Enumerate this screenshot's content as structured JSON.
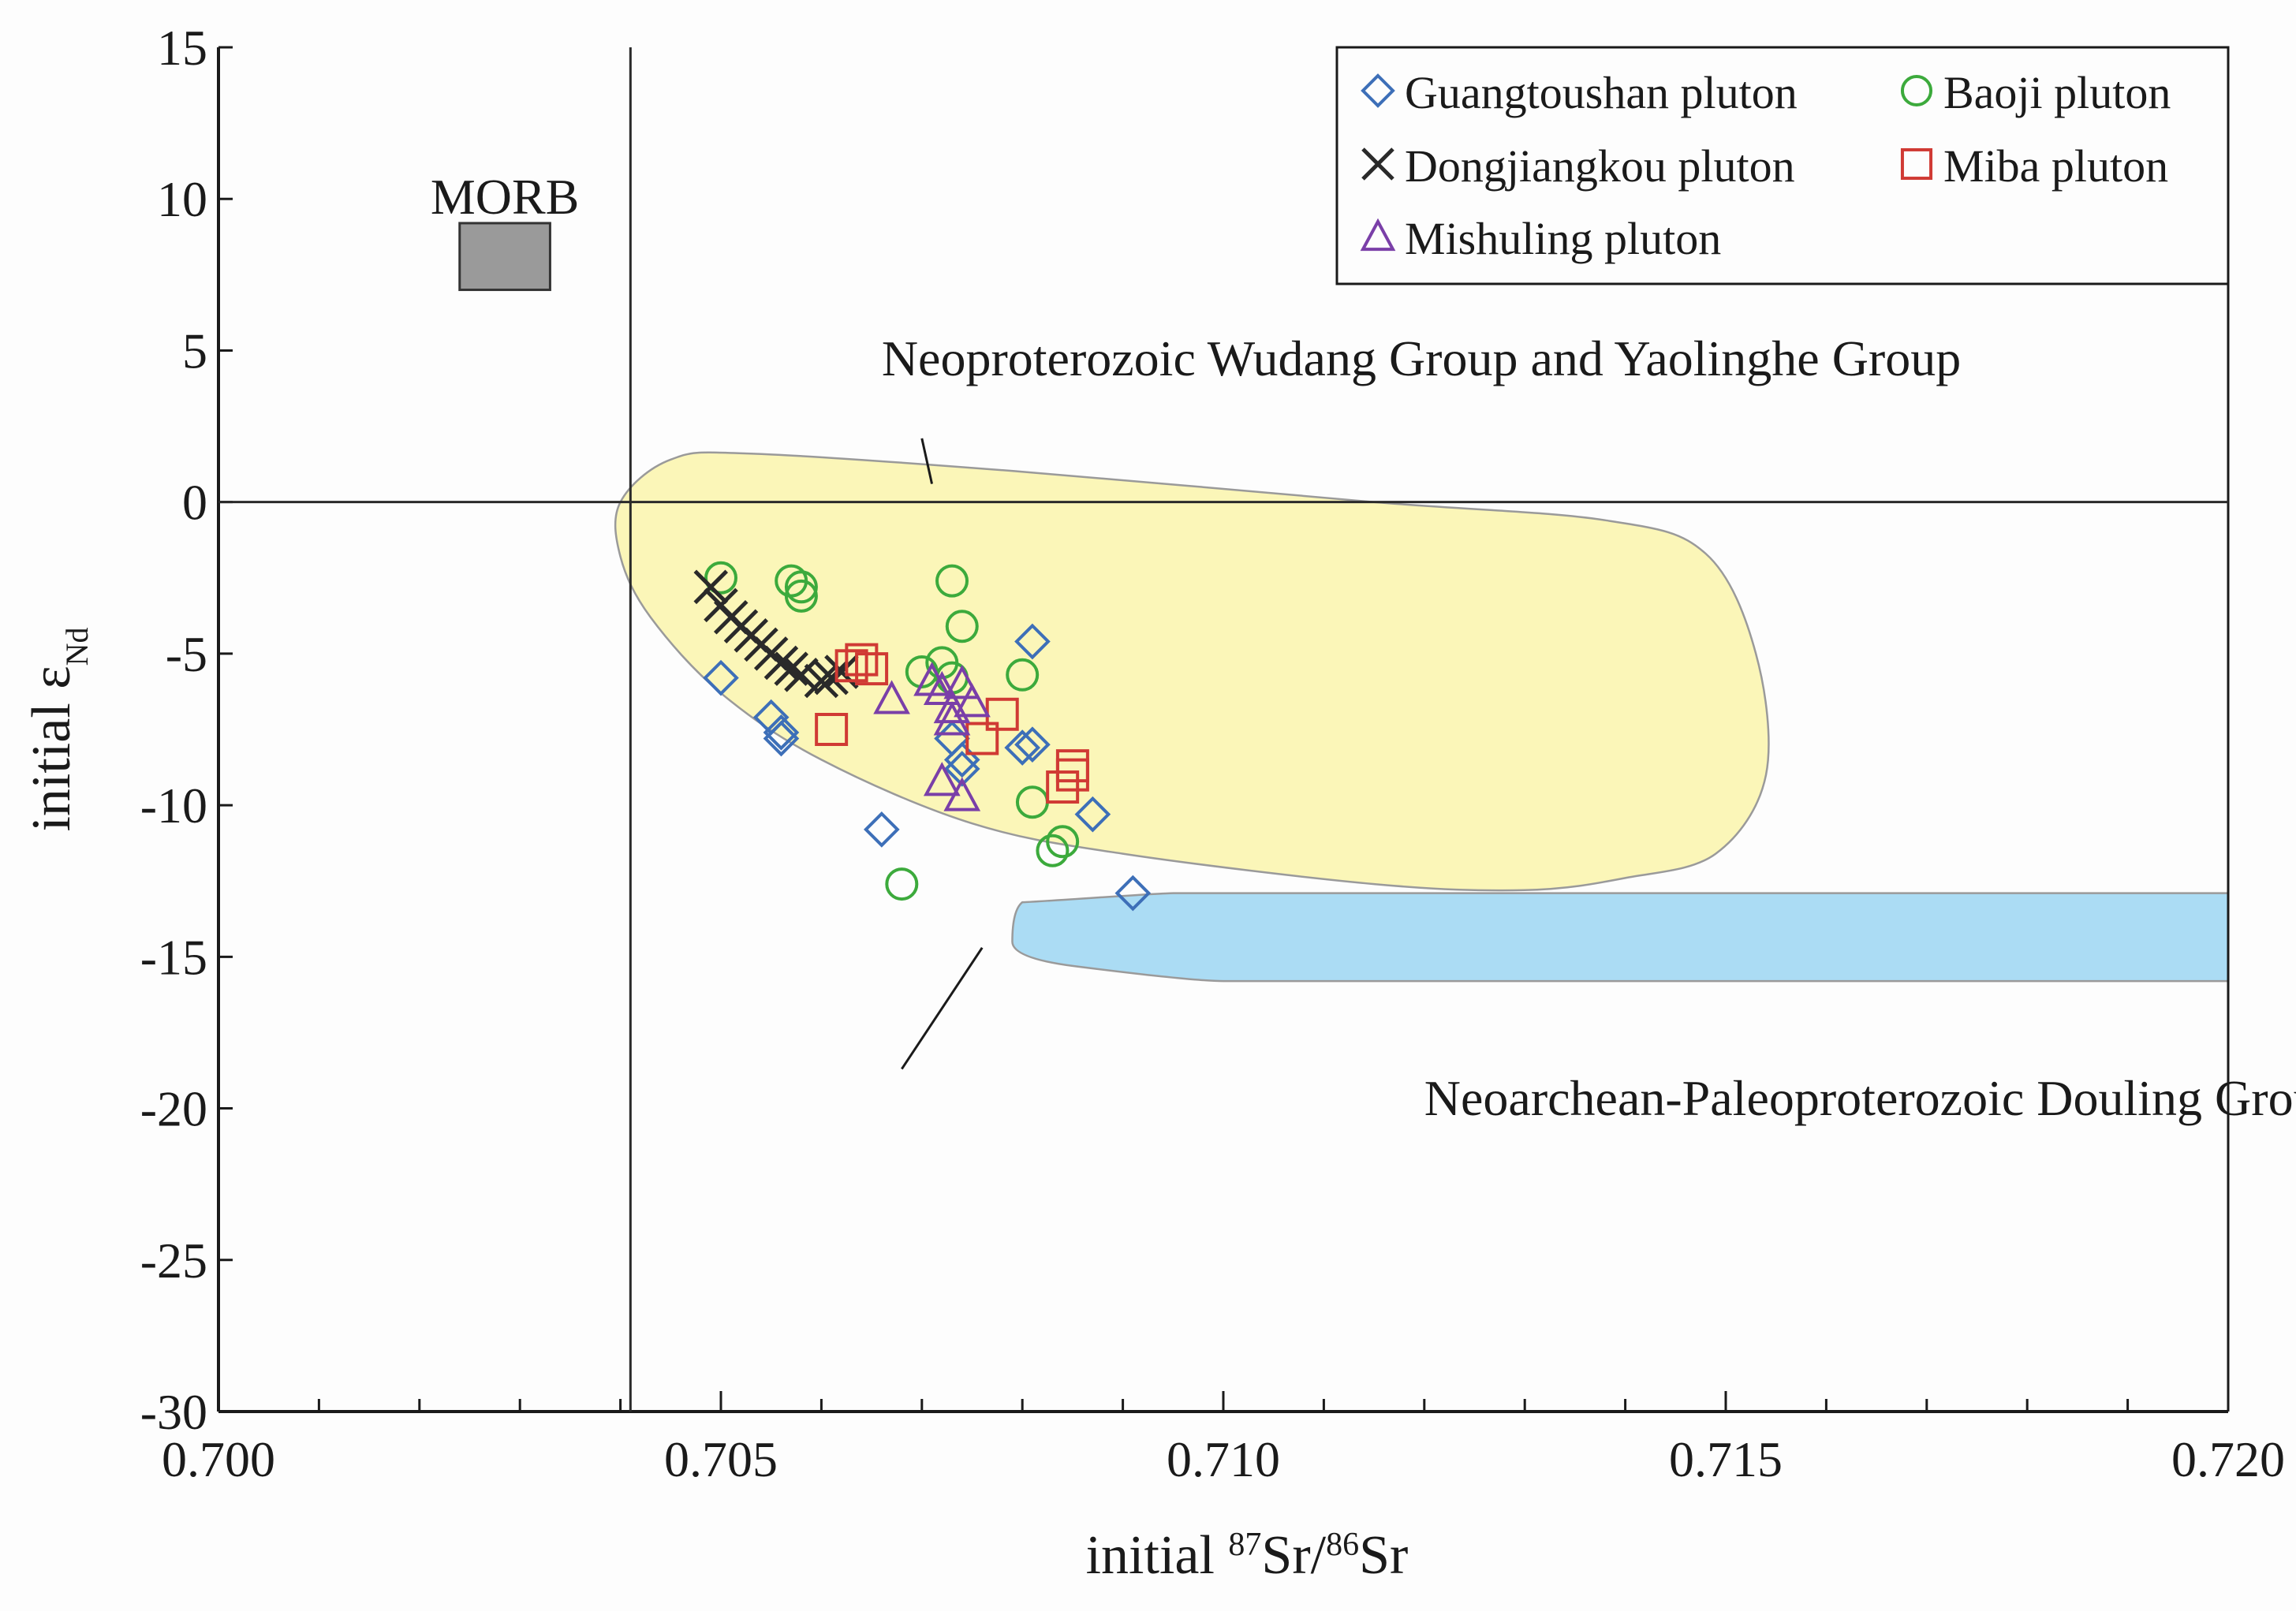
{
  "chart_data": {
    "type": "scatter",
    "xlabel": "initial 87Sr/86Sr",
    "xlabel_parts": {
      "prefix": "initial",
      "sup1": "87",
      "mid": "Sr/",
      "sup2": "86",
      "suffix": "Sr"
    },
    "ylabel": "initial εNd",
    "ylabel_parts": {
      "prefix": "initial ε",
      "sub": "Nd"
    },
    "xlim": [
      0.7,
      0.72
    ],
    "ylim": [
      -30,
      15
    ],
    "xticks": [
      0.7,
      0.705,
      0.71,
      0.715,
      0.72
    ],
    "xtick_labels": [
      "0.700",
      "0.705",
      "0.710",
      "0.715",
      "0.720"
    ],
    "xminor_step": 0.001,
    "yticks": [
      15,
      10,
      5,
      0,
      -5,
      -10,
      -15,
      -20,
      -25,
      -30
    ],
    "ytick_labels": [
      "15",
      "10",
      "5",
      "0",
      "-5",
      "-10",
      "-15",
      "-20",
      "-25",
      "-30"
    ],
    "reference_lines": {
      "vertical_x": 0.7041,
      "horizontal_y": 0
    },
    "morb_box": {
      "label": "MORB",
      "x_range": [
        0.7024,
        0.7033
      ],
      "y_range": [
        7,
        9.2
      ],
      "color": "#9a9a9a"
    },
    "fields": [
      {
        "name": "Neoproterozoic Wudang Group and Yaolinghe Group",
        "color": "#fbf6b8",
        "outline": [
          [
            0.704,
            0.0
          ],
          [
            0.7045,
            1.4
          ],
          [
            0.7053,
            1.6
          ],
          [
            0.708,
            1.0
          ],
          [
            0.7115,
            0.0
          ],
          [
            0.7138,
            -0.6
          ],
          [
            0.7148,
            -1.7
          ],
          [
            0.7153,
            -5
          ],
          [
            0.7154,
            -9
          ],
          [
            0.7149,
            -11.6
          ],
          [
            0.714,
            -12.4
          ],
          [
            0.713,
            -12.8
          ],
          [
            0.7115,
            -12.6
          ],
          [
            0.709,
            -11.6
          ],
          [
            0.7075,
            -10.6
          ],
          [
            0.706,
            -8.5
          ],
          [
            0.705,
            -6.3
          ],
          [
            0.7043,
            -3.8
          ],
          [
            0.704,
            -1.8
          ]
        ],
        "label_anchor": [
          0.7066,
          4.6
        ],
        "leader": [
          [
            0.707,
            2.1
          ],
          [
            0.7071,
            0.6
          ]
        ]
      },
      {
        "name": "Neoarchean-Paleoproterozoic Douling Group",
        "color": "#abdcf4",
        "outline": [
          [
            0.72,
            -12.9
          ],
          [
            0.7095,
            -12.9
          ],
          [
            0.708,
            -13.2
          ],
          [
            0.7079,
            -14.5
          ],
          [
            0.7085,
            -15.3
          ],
          [
            0.71,
            -15.8
          ],
          [
            0.72,
            -15.8
          ]
        ],
        "label_anchor": [
          0.712,
          -19.8
        ],
        "leader": [
          [
            0.7068,
            -18.7
          ],
          [
            0.7076,
            -14.7
          ]
        ]
      }
    ],
    "legend": {
      "position": "top-right"
    },
    "series": [
      {
        "name": "Guangtoushan pluton",
        "marker": "diamond",
        "color": "#3d6fb8",
        "points": [
          [
            0.705,
            -5.8
          ],
          [
            0.7055,
            -7.1
          ],
          [
            0.7056,
            -7.6
          ],
          [
            0.7056,
            -7.8
          ],
          [
            0.7066,
            -10.8
          ],
          [
            0.7073,
            -7.8
          ],
          [
            0.7074,
            -8.5
          ],
          [
            0.7074,
            -8.8
          ],
          [
            0.708,
            -8.1
          ],
          [
            0.7081,
            -8.0
          ],
          [
            0.7081,
            -4.6
          ],
          [
            0.7087,
            -10.3
          ],
          [
            0.7091,
            -12.9
          ]
        ]
      },
      {
        "name": "Baoji pluton",
        "marker": "circle",
        "color": "#3caa3c",
        "points": [
          [
            0.705,
            -2.5
          ],
          [
            0.7057,
            -2.6
          ],
          [
            0.7058,
            -2.8
          ],
          [
            0.7058,
            -3.1
          ],
          [
            0.7068,
            -12.6
          ],
          [
            0.707,
            -5.6
          ],
          [
            0.7072,
            -5.3
          ],
          [
            0.7073,
            -5.8
          ],
          [
            0.7073,
            -2.6
          ],
          [
            0.7074,
            -4.1
          ],
          [
            0.708,
            -5.7
          ],
          [
            0.7081,
            -9.9
          ],
          [
            0.7083,
            -11.5
          ],
          [
            0.7084,
            -11.2
          ]
        ]
      },
      {
        "name": "Dongjiangkou pluton",
        "marker": "x",
        "color": "#2a2a2a",
        "points": [
          [
            0.7049,
            -2.8
          ],
          [
            0.705,
            -3.4
          ],
          [
            0.7051,
            -3.8
          ],
          [
            0.7052,
            -4.1
          ],
          [
            0.7053,
            -4.4
          ],
          [
            0.7054,
            -4.7
          ],
          [
            0.7055,
            -5.0
          ],
          [
            0.7056,
            -5.3
          ],
          [
            0.7057,
            -5.5
          ],
          [
            0.7058,
            -5.7
          ],
          [
            0.706,
            -5.9
          ],
          [
            0.7061,
            -5.8
          ],
          [
            0.7062,
            -5.6
          ]
        ]
      },
      {
        "name": "Miba pluton",
        "marker": "square",
        "color": "#d03a34",
        "points": [
          [
            0.7061,
            -7.5
          ],
          [
            0.7063,
            -5.4
          ],
          [
            0.7064,
            -5.2
          ],
          [
            0.7065,
            -5.5
          ],
          [
            0.7076,
            -7.8
          ],
          [
            0.7078,
            -7.0
          ],
          [
            0.7084,
            -9.4
          ],
          [
            0.7085,
            -9.0
          ],
          [
            0.7085,
            -8.7
          ]
        ]
      },
      {
        "name": "Mishuling pluton",
        "marker": "triangle",
        "color": "#7a3fa8",
        "points": [
          [
            0.7067,
            -6.5
          ],
          [
            0.7071,
            -5.9
          ],
          [
            0.7072,
            -6.2
          ],
          [
            0.7072,
            -9.2
          ],
          [
            0.7073,
            -6.8
          ],
          [
            0.7073,
            -7.2
          ],
          [
            0.7074,
            -6.0
          ],
          [
            0.7074,
            -9.7
          ],
          [
            0.7075,
            -6.6
          ]
        ]
      }
    ]
  }
}
